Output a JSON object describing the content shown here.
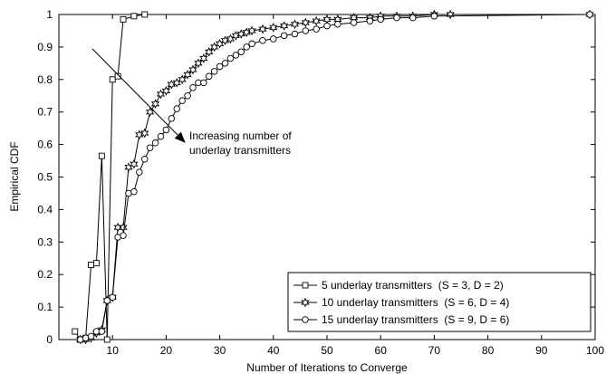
{
  "chart_data": {
    "type": "line",
    "xlabel": "Number of Iterations to Converge",
    "ylabel": "Empirical CDF",
    "xlim": [
      0,
      100
    ],
    "ylim": [
      0,
      1
    ],
    "xticks": [
      "10",
      "20",
      "30",
      "40",
      "50",
      "60",
      "70",
      "80",
      "90",
      "100"
    ],
    "yticks": [
      "0",
      "0.1",
      "0.2",
      "0.3",
      "0.4",
      "0.5",
      "0.6",
      "0.7",
      "0.8",
      "0.9",
      "1"
    ],
    "grid": false,
    "legend_position": "bottom-right",
    "annotation": {
      "line1": "Increasing number of",
      "line2": "underlay transmitters"
    },
    "series": [
      {
        "name": "5 underlay transmitters  (S = 3, D = 2)",
        "marker": "square",
        "x": [
          3,
          4,
          5,
          6,
          7,
          8,
          9,
          10,
          11,
          12,
          14,
          16
        ],
        "y": [
          0.025,
          0.0,
          0.005,
          0.23,
          0.235,
          0.565,
          0.0,
          0.8,
          0.81,
          0.985,
          0.995,
          1.0
        ]
      },
      {
        "name": "10 underlay transmitters  (S = 6, D = 4)",
        "marker": "hexagram",
        "x": [
          4,
          5,
          6,
          7,
          8,
          9,
          10,
          11,
          12,
          13,
          14,
          15,
          16,
          17,
          18,
          19,
          20,
          21,
          22,
          23,
          24,
          25,
          26,
          27,
          28,
          29,
          30,
          31,
          32,
          33,
          34,
          35,
          36,
          38,
          40,
          42,
          44,
          46,
          48,
          50,
          52,
          55,
          58,
          60,
          63,
          66,
          70,
          73,
          99
        ],
        "y": [
          0.0,
          0.0,
          0.005,
          0.02,
          0.03,
          0.12,
          0.13,
          0.345,
          0.345,
          0.53,
          0.54,
          0.63,
          0.635,
          0.7,
          0.725,
          0.755,
          0.765,
          0.785,
          0.79,
          0.8,
          0.815,
          0.83,
          0.85,
          0.865,
          0.885,
          0.9,
          0.91,
          0.92,
          0.925,
          0.935,
          0.94,
          0.945,
          0.95,
          0.955,
          0.96,
          0.965,
          0.97,
          0.975,
          0.98,
          0.985,
          0.985,
          0.99,
          0.99,
          0.995,
          0.995,
          0.995,
          1.0,
          1.0,
          1.0
        ]
      },
      {
        "name": "15 underlay transmitters  (S = 9, D = 6)",
        "marker": "circle",
        "x": [
          4,
          5,
          6,
          7,
          8,
          9,
          10,
          11,
          12,
          13,
          14,
          15,
          16,
          17,
          18,
          19,
          20,
          21,
          22,
          23,
          24,
          25,
          26,
          27,
          28,
          29,
          30,
          31,
          32,
          33,
          34,
          35,
          36,
          38,
          40,
          42,
          44,
          46,
          48,
          50,
          52,
          55,
          58,
          60,
          63,
          66,
          70,
          99
        ],
        "y": [
          0.0,
          0.005,
          0.01,
          0.025,
          0.025,
          0.12,
          0.13,
          0.315,
          0.32,
          0.45,
          0.455,
          0.515,
          0.555,
          0.59,
          0.605,
          0.625,
          0.645,
          0.68,
          0.71,
          0.735,
          0.75,
          0.775,
          0.79,
          0.79,
          0.81,
          0.825,
          0.84,
          0.85,
          0.865,
          0.875,
          0.885,
          0.9,
          0.91,
          0.92,
          0.925,
          0.935,
          0.94,
          0.95,
          0.955,
          0.965,
          0.97,
          0.975,
          0.98,
          0.985,
          0.99,
          0.99,
          0.995,
          1.0
        ]
      }
    ]
  }
}
